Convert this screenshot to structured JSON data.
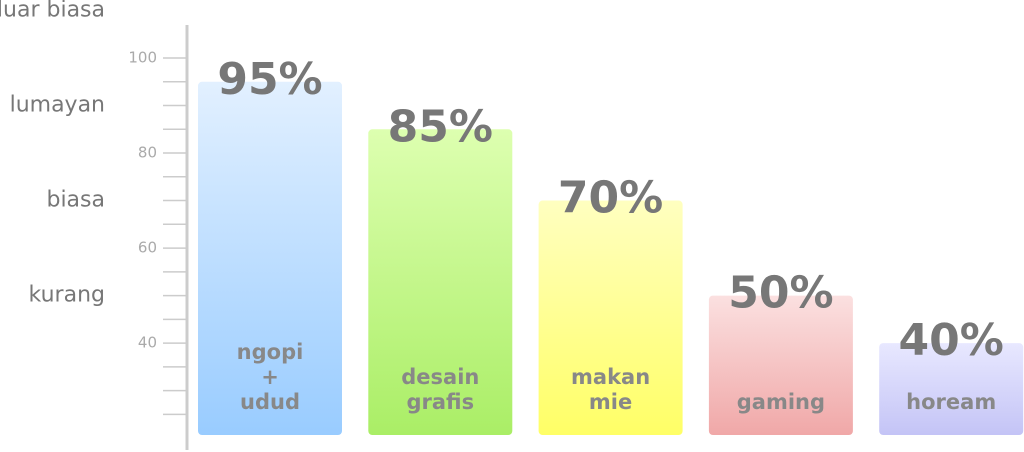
{
  "chart_data": {
    "type": "bar",
    "categories": [
      [
        "ngopi",
        "+",
        "udud"
      ],
      [
        "desain",
        "grafis"
      ],
      [
        "makan",
        "mie"
      ],
      [
        "gaming"
      ],
      [
        "hoream"
      ]
    ],
    "values": [
      95,
      85,
      70,
      50,
      40
    ],
    "value_labels": [
      "95%",
      "85%",
      "70%",
      "50%",
      "40%"
    ],
    "colors": [
      [
        "#e2f0ff",
        "#99ccff"
      ],
      [
        "#ddffb0",
        "#aaee66"
      ],
      [
        "#ffffc0",
        "#ffff66"
      ],
      [
        "#fbe0e0",
        "#f0a8a8"
      ],
      [
        "#e8e8ff",
        "#c4c4f6"
      ]
    ],
    "ylim": [
      17.5,
      110
    ],
    "yticks": [
      40,
      60,
      80,
      100
    ],
    "minor_yticks": [
      25,
      30,
      35,
      45,
      50,
      55,
      65,
      70,
      75,
      85,
      90,
      95
    ],
    "level_ticks": [
      {
        "value": 110,
        "label": "luar biasa"
      },
      {
        "value": 90,
        "label": "lumayan"
      },
      {
        "value": 70,
        "label": "biasa"
      },
      {
        "value": 50,
        "label": "kurang"
      }
    ]
  }
}
